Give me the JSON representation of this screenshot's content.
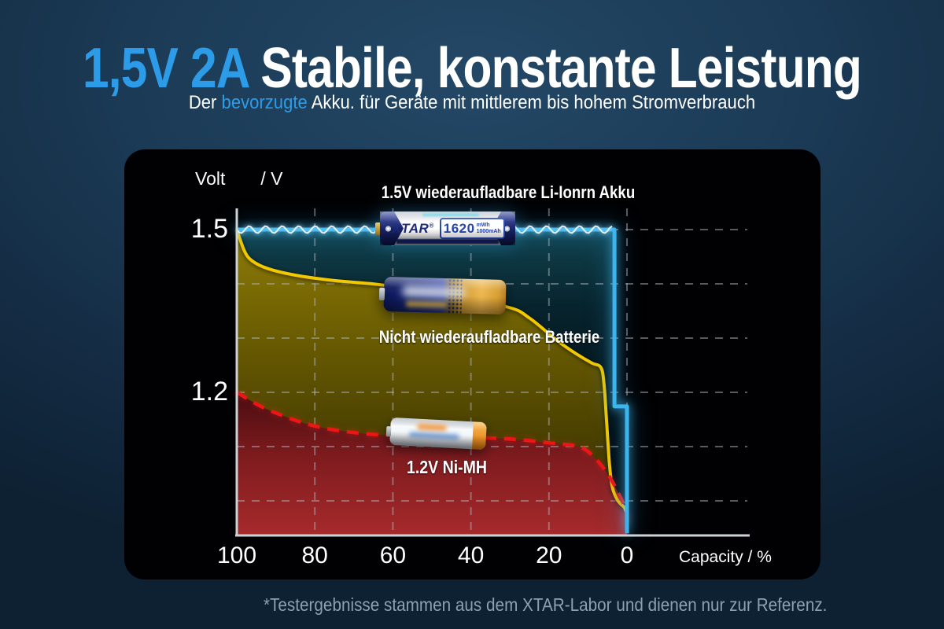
{
  "header": {
    "title_highlight": "1,5V 2A",
    "title_rest": " Stabile, konstante Leistung",
    "subtitle_pre": "Der ",
    "subtitle_highlight": "bevorzugte",
    "subtitle_post": " Akku. für Geräte mit mittlerem bis hohem Stromverbrauch"
  },
  "colors": {
    "accent_blue": "#2d9ce8",
    "line_liion": "#3cb4ee",
    "line_alkaline": "#f2c800",
    "line_nimh": "#ee1515",
    "panel_background": "#010103"
  },
  "chart": {
    "ylabel_value": "Volt",
    "ylabel_unit": "/ V",
    "xlabel": "Capacity / %",
    "footnote": "*Testergebnisse stammen aus dem XTAR-Labor und dienen nur zur Referenz.",
    "labels": {
      "liion": "1.5V wiederaufladbare Li-Ionrn Akku",
      "alkaline": "Nicht wiederaufladbare Batterie",
      "nimh": "1.2V Ni-MH"
    },
    "battery_badge": {
      "logo": "XTAR",
      "reg": "®",
      "capacity": "1620",
      "unit_mwh": "mWh",
      "unit_mah": "1000mAh"
    }
  },
  "chart_data": {
    "type": "line",
    "title": "",
    "xlabel": "Capacity / %",
    "ylabel": "Volt / V",
    "x_axis_reversed": true,
    "x_ticks": [
      100,
      80,
      60,
      40,
      20,
      0
    ],
    "y_ticks": [
      1.5,
      1.2
    ],
    "y_gridlines": [
      1.5,
      1.4,
      1.3,
      1.2,
      1.1,
      1.0
    ],
    "xlim": [
      100,
      0
    ],
    "ylim": [
      0.94,
      1.56
    ],
    "grid": true,
    "series": [
      {
        "name": "1.5V wiederaufladbare Li-Ionrn Akku",
        "color": "#3cb4ee",
        "style": "solid",
        "points": [
          [
            100,
            1.5
          ],
          [
            3.2,
            1.5
          ],
          [
            3.2,
            1.174
          ],
          [
            0,
            1.174
          ],
          [
            0,
            0.94
          ]
        ]
      },
      {
        "name": "Nicht wiederaufladbare Batterie",
        "color": "#f2c800",
        "style": "solid",
        "points": [
          [
            100,
            1.5
          ],
          [
            98,
            1.46
          ],
          [
            96,
            1.442
          ],
          [
            92,
            1.428
          ],
          [
            85,
            1.416
          ],
          [
            75,
            1.406
          ],
          [
            64,
            1.399
          ],
          [
            50,
            1.384
          ],
          [
            31,
            1.358
          ],
          [
            25,
            1.337
          ],
          [
            18,
            1.296
          ],
          [
            13,
            1.271
          ],
          [
            9,
            1.254
          ],
          [
            6.7,
            1.246
          ],
          [
            5.9,
            1.217
          ],
          [
            5.3,
            1.155
          ],
          [
            4.5,
            1.068
          ],
          [
            3.7,
            1.024
          ],
          [
            2.3,
            1.0
          ],
          [
            0.7,
            0.988
          ],
          [
            0.3,
            0.98
          ]
        ]
      },
      {
        "name": "1.2V Ni-MH",
        "color": "#ee1515",
        "style": "dashed",
        "points": [
          [
            100,
            1.2
          ],
          [
            92,
            1.168
          ],
          [
            80,
            1.138
          ],
          [
            66,
            1.123
          ],
          [
            50,
            1.119
          ],
          [
            32,
            1.115
          ],
          [
            20,
            1.107
          ],
          [
            12,
            1.099
          ],
          [
            8,
            1.077
          ],
          [
            4.8,
            1.048
          ],
          [
            2.2,
            1.014
          ],
          [
            0.4,
            0.983
          ],
          [
            0,
            0.94
          ]
        ]
      }
    ]
  }
}
